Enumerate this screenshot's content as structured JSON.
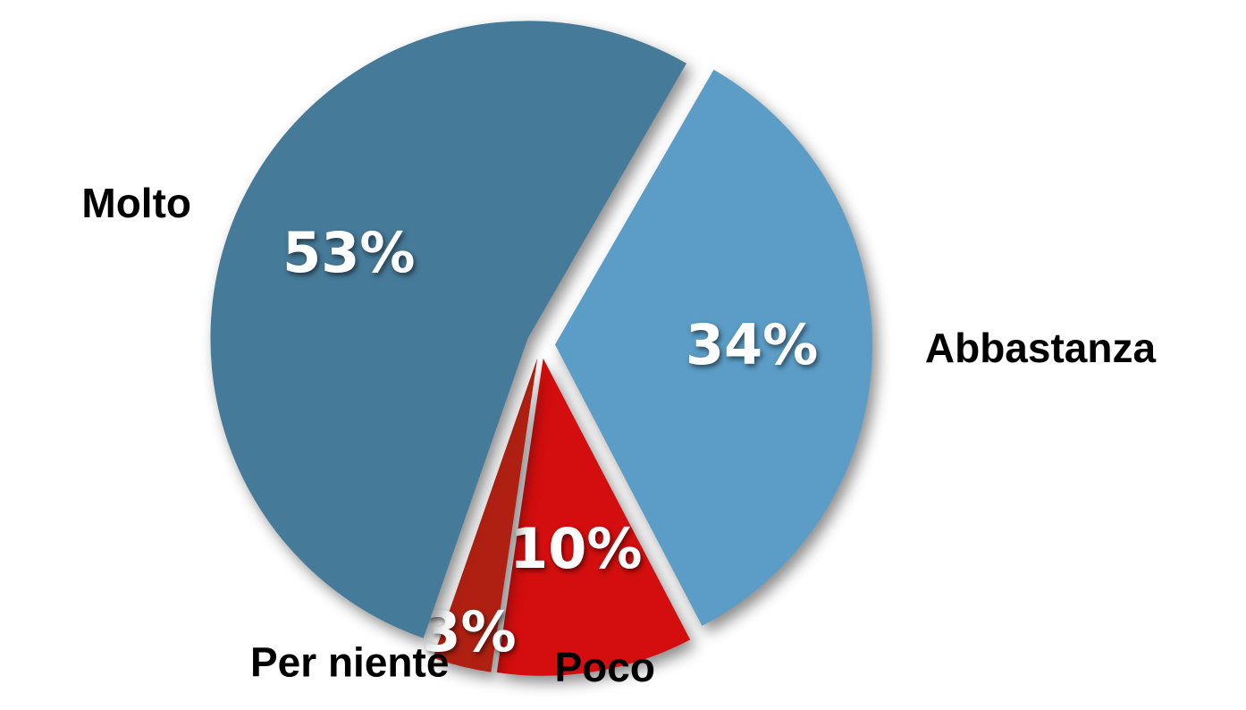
{
  "chart_data": {
    "type": "pie",
    "categories": [
      "Abbastanza",
      "Poco",
      "Per niente",
      "Molto"
    ],
    "values": [
      34,
      10,
      3,
      53
    ],
    "value_labels": [
      "34%",
      "10%",
      "3%",
      "53%"
    ],
    "colors": [
      "#5b9dc6",
      "#d40e0e",
      "#b02012",
      "#467a99"
    ]
  }
}
